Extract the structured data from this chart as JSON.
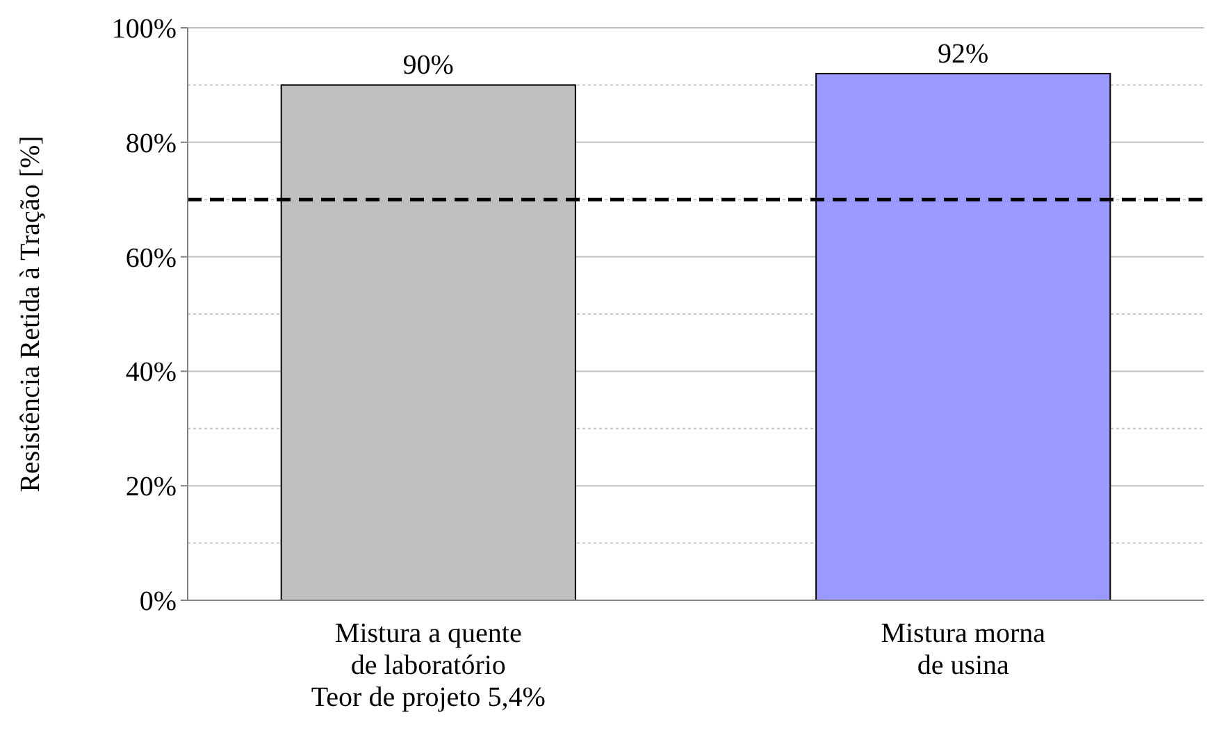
{
  "chart_data": {
    "type": "bar",
    "ylabel": "Resistência Retida à Tração [%]",
    "categories": [
      "Mistura a quente\nde laboratório\nTeor de projeto 5,4%",
      "Mistura morna\nde usina"
    ],
    "values": [
      90,
      92
    ],
    "colors": [
      "#c0c0c0",
      "#9999ff"
    ],
    "value_labels": [
      "90%",
      "92%"
    ],
    "ylim": [
      0,
      100
    ],
    "yticks": [
      {
        "value": 0,
        "label": "0%"
      },
      {
        "value": 10,
        "label": null
      },
      {
        "value": 20,
        "label": "20%"
      },
      {
        "value": 30,
        "label": null
      },
      {
        "value": 40,
        "label": "40%"
      },
      {
        "value": 50,
        "label": null
      },
      {
        "value": 60,
        "label": "60%"
      },
      {
        "value": 70,
        "label": null
      },
      {
        "value": 80,
        "label": "80%"
      },
      {
        "value": 90,
        "label": null
      },
      {
        "value": 100,
        "label": "100%"
      }
    ],
    "grid": "y",
    "ref_lines": [
      {
        "axis": "y",
        "value": 70,
        "color": "#000000",
        "line_style": "dashed"
      }
    ]
  }
}
